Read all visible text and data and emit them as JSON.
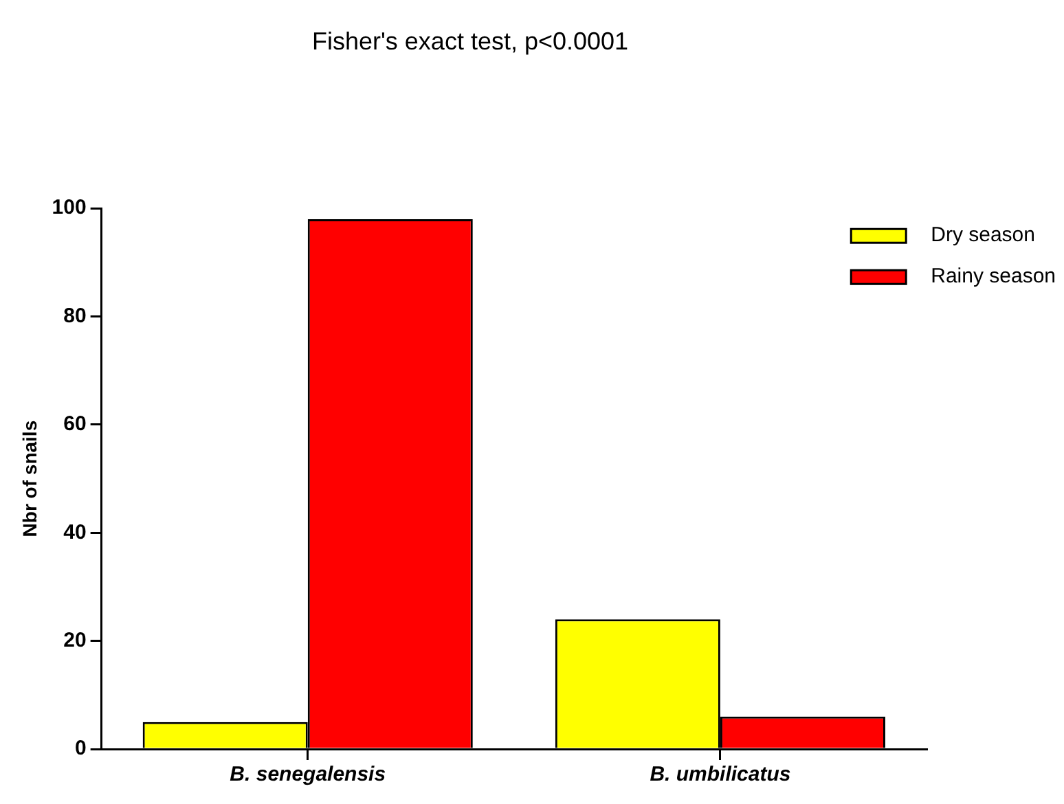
{
  "chart_data": {
    "type": "bar",
    "title": "Fisher's exact test, p<0.0001",
    "ylabel": "Nbr of snails",
    "categories": [
      "B. senegalensis",
      "B. umbilicatus"
    ],
    "series": [
      {
        "name": "Dry season",
        "color": "#ffff00",
        "values": [
          5,
          24
        ]
      },
      {
        "name": "Rainy season",
        "color": "#ff0000",
        "values": [
          98,
          6
        ]
      }
    ],
    "ylim": [
      0,
      100
    ],
    "yticks": [
      0,
      20,
      40,
      60,
      80,
      100
    ],
    "grid": false,
    "legend": "top right"
  }
}
